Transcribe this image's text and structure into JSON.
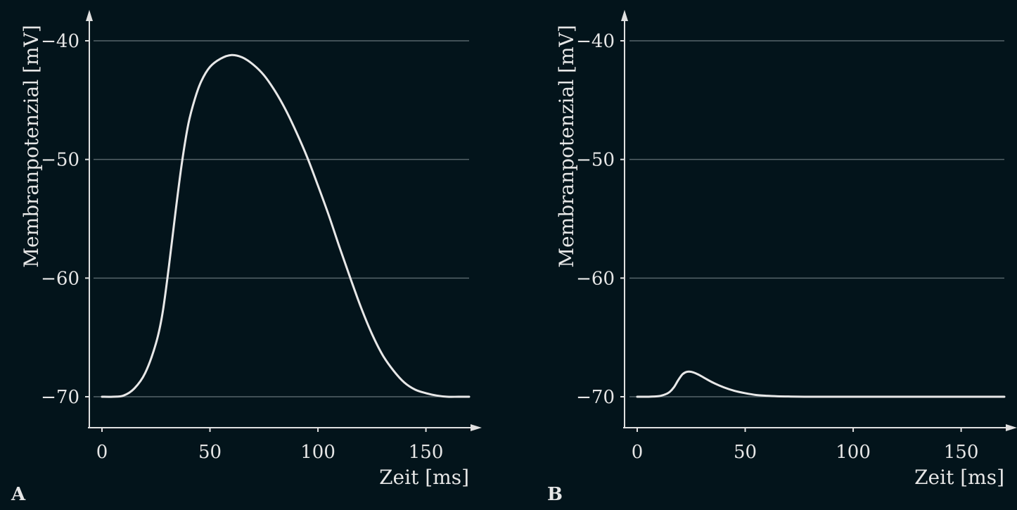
{
  "chart_data": [
    {
      "type": "line",
      "panel_label": "A",
      "title": "",
      "xlabel": "Zeit [ms]",
      "ylabel": "Membranpotenzial [mV]",
      "xlim": [
        0,
        170
      ],
      "ylim": [
        -72.5,
        -40
      ],
      "xticks": [
        0,
        50,
        100,
        150
      ],
      "yticks": [
        -40,
        -50,
        -60,
        -70
      ],
      "xtick_labels": [
        "0",
        "50",
        "100",
        "150"
      ],
      "ytick_labels": [
        "−40",
        "−50",
        "−60",
        "−70"
      ],
      "grid": "horizontal",
      "series": [
        {
          "x": [
            0,
            5,
            10,
            15,
            20,
            25,
            28,
            31,
            34,
            37,
            40,
            43,
            46,
            50,
            55,
            60,
            65,
            70,
            75,
            80,
            85,
            90,
            95,
            100,
            105,
            110,
            115,
            120,
            125,
            130,
            135,
            140,
            145,
            150,
            155,
            160,
            165,
            170
          ],
          "y": [
            -70,
            -70,
            -69.9,
            -69.3,
            -68.0,
            -65.5,
            -63.0,
            -59.0,
            -54.5,
            -50.3,
            -47.0,
            -44.9,
            -43.4,
            -42.2,
            -41.5,
            -41.2,
            -41.4,
            -42.0,
            -42.9,
            -44.2,
            -45.8,
            -47.7,
            -49.8,
            -52.2,
            -54.7,
            -57.4,
            -60.0,
            -62.5,
            -64.7,
            -66.5,
            -67.8,
            -68.8,
            -69.4,
            -69.7,
            -69.9,
            -70.0,
            -70,
            -70
          ]
        }
      ]
    },
    {
      "type": "line",
      "panel_label": "B",
      "title": "",
      "xlabel": "Zeit [ms]",
      "ylabel": "Membranpotenzial [mV]",
      "xlim": [
        0,
        170
      ],
      "ylim": [
        -72.5,
        -40
      ],
      "xticks": [
        0,
        50,
        100,
        150
      ],
      "yticks": [
        -40,
        -50,
        -60,
        -70
      ],
      "xtick_labels": [
        "0",
        "50",
        "100",
        "150"
      ],
      "ytick_labels": [
        "−40",
        "−50",
        "−60",
        "−70"
      ],
      "grid": "horizontal",
      "series": [
        {
          "x": [
            0,
            5,
            10,
            13,
            15,
            17,
            19,
            21,
            23,
            25,
            28,
            31,
            35,
            40,
            45,
            50,
            55,
            60,
            65,
            70,
            80,
            100,
            130,
            170
          ],
          "y": [
            -70,
            -70,
            -69.95,
            -69.8,
            -69.6,
            -69.2,
            -68.6,
            -68.1,
            -67.9,
            -67.9,
            -68.1,
            -68.4,
            -68.8,
            -69.2,
            -69.5,
            -69.7,
            -69.85,
            -69.92,
            -69.96,
            -69.98,
            -70,
            -70,
            -70,
            -70
          ]
        }
      ]
    }
  ]
}
